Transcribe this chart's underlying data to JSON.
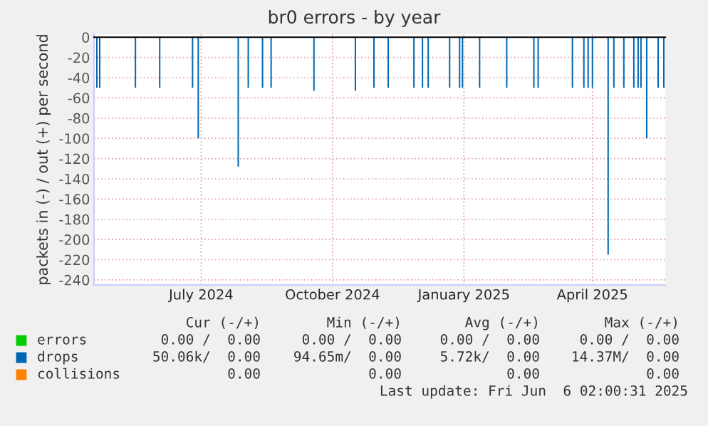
{
  "chart_data": {
    "type": "bar",
    "title": "br0 errors - by year",
    "ylabel": "packets in (-) / out (+) per second",
    "xlim": [
      "2024-05-02",
      "2025-06-06"
    ],
    "ylim": [
      -245,
      3
    ],
    "xticks": [
      {
        "value": "2024-07-16",
        "label": "July 2024"
      },
      {
        "value": "2024-10-16",
        "label": "October 2024"
      },
      {
        "value": "2025-01-16",
        "label": "January 2025"
      },
      {
        "value": "2025-04-16",
        "label": "April 2025"
      }
    ],
    "yticks": [
      0,
      -20,
      -40,
      -60,
      -80,
      -100,
      -120,
      -140,
      -160,
      -180,
      -200,
      -220,
      -240
    ],
    "grid": true,
    "legend": "bottom left",
    "series": [
      {
        "name": "errors",
        "color": "#00cc00"
      },
      {
        "name": "drops",
        "color": "#0066b3",
        "x": [
          "2024-05-04",
          "2024-05-06",
          "2024-05-31",
          "2024-06-17",
          "2024-07-10",
          "2024-07-14",
          "2024-08-11",
          "2024-08-18",
          "2024-08-28",
          "2024-09-03",
          "2024-10-03",
          "2024-11-01",
          "2024-11-14",
          "2024-11-24",
          "2024-12-12",
          "2024-12-18",
          "2024-12-22",
          "2025-01-06",
          "2025-01-13",
          "2025-01-15",
          "2025-01-27",
          "2025-02-15",
          "2025-03-06",
          "2025-03-09",
          "2025-04-02",
          "2025-04-10",
          "2025-04-13",
          "2025-04-16",
          "2025-04-27",
          "2025-05-01",
          "2025-05-08",
          "2025-05-15",
          "2025-05-18",
          "2025-05-20",
          "2025-05-24",
          "2025-06-01",
          "2025-06-05"
        ],
        "values": [
          -50,
          -50,
          -50,
          -50,
          -50,
          -100,
          -128,
          -50,
          -50,
          -50,
          -53,
          -53,
          -50,
          -50,
          -50,
          -50,
          -50,
          -50,
          -50,
          -50,
          -50,
          -50,
          -50,
          -50,
          -50,
          -50,
          -50,
          -50,
          -215,
          -50,
          -50,
          -50,
          -50,
          -50,
          -100,
          -50,
          -50
        ]
      },
      {
        "name": "collisions",
        "color": "#ff8000"
      }
    ],
    "annotations": [
      "Cur (-/+)",
      "Min (-/+)",
      "Avg (-/+)",
      "Max (-/+)",
      "0.00 /  0.00",
      "0.00 /  0.00",
      "0.00 /  0.00",
      "0.00 /  0.00",
      "50.06k/  0.00",
      "94.65m/  0.00",
      "5.72k/  0.00",
      "14.37M/  0.00",
      "0.00",
      "0.00",
      "0.00",
      "0.00",
      "Last update: Fri Jun  6 02:00:31 2025"
    ]
  }
}
